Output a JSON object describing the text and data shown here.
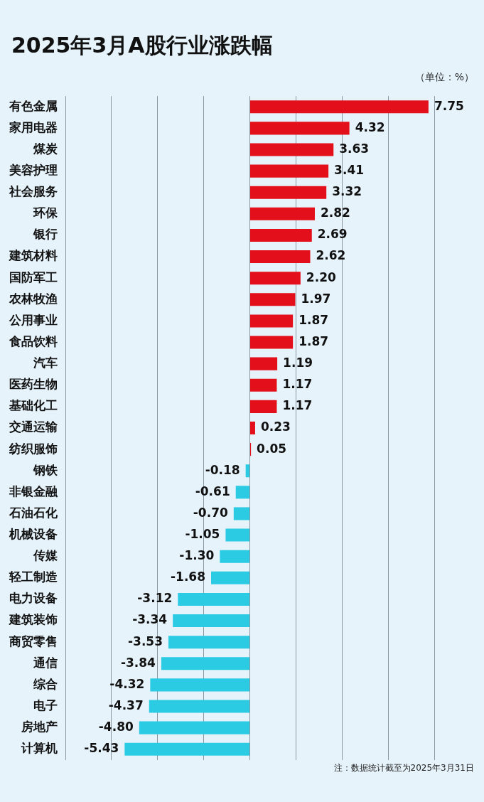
{
  "chart_data": {
    "type": "bar",
    "orientation": "horizontal",
    "title": "2025年3月A股行业涨跌幅",
    "categories": [
      "有色金属",
      "家用电器",
      "煤炭",
      "美容护理",
      "社会服务",
      "环保",
      "银行",
      "建筑材料",
      "国防军工",
      "农林牧渔",
      "公用事业",
      "食品饮料",
      "汽车",
      "医药生物",
      "基础化工",
      "交通运输",
      "纺织服饰",
      "钢铁",
      "非银金融",
      "石油石化",
      "机械设备",
      "传媒",
      "轻工制造",
      "电力设备",
      "建筑装饰",
      "商贸零售",
      "通信",
      "综合",
      "电子",
      "房地产",
      "计算机"
    ],
    "values": [
      7.75,
      4.32,
      3.63,
      3.41,
      3.32,
      2.82,
      2.69,
      2.62,
      2.2,
      1.97,
      1.87,
      1.87,
      1.19,
      1.17,
      1.17,
      0.23,
      0.05,
      -0.18,
      -0.61,
      -0.7,
      -1.05,
      -1.3,
      -1.68,
      -3.12,
      -3.34,
      -3.53,
      -3.84,
      -4.32,
      -4.37,
      -4.8,
      -5.43
    ],
    "value_labels": [
      "7.75",
      "4.32",
      "3.63",
      "3.41",
      "3.32",
      "2.82",
      "2.69",
      "2.62",
      "2.20",
      "1.97",
      "1.87",
      "1.87",
      "1.19",
      "1.17",
      "1.17",
      "0.23",
      "0.05",
      "-0.18",
      "-0.61",
      "-0.70",
      "-1.05",
      "-1.30",
      "-1.68",
      "-3.12",
      "-3.34",
      "-3.53",
      "-3.84",
      "-4.32",
      "-4.37",
      "-4.80",
      "-5.43"
    ],
    "colors": [
      "#e3101c",
      "#e3101c",
      "#e3101c",
      "#e3101c",
      "#e3101c",
      "#e3101c",
      "#e3101c",
      "#e3101c",
      "#e3101c",
      "#e3101c",
      "#e3101c",
      "#e3101c",
      "#e3101c",
      "#e3101c",
      "#e3101c",
      "#e3101c",
      "#e3101c",
      "#2ccbe4",
      "#2ccbe4",
      "#2ccbe4",
      "#2ccbe4",
      "#2ccbe4",
      "#2ccbe4",
      "#2ccbe4",
      "#2ccbe4",
      "#2ccbe4",
      "#2ccbe4",
      "#2ccbe4",
      "#2ccbe4",
      "#2ccbe4",
      "#2ccbe4"
    ],
    "xlim": [
      -8,
      8
    ],
    "xticks": [
      {
        "value": -8,
        "label": null
      },
      {
        "value": -6,
        "label": null
      },
      {
        "value": -4,
        "label": null
      },
      {
        "value": -2,
        "label": null
      },
      {
        "value": 0,
        "label": null
      },
      {
        "value": 2,
        "label": null
      },
      {
        "value": 4,
        "label": null
      },
      {
        "value": 6,
        "label": null
      },
      {
        "value": 8,
        "label": null
      }
    ],
    "grid": "x",
    "tick_labels": "y",
    "annotations": [
      "（单位：%）",
      "注：数据统计截至为2025年3月31日"
    ]
  }
}
